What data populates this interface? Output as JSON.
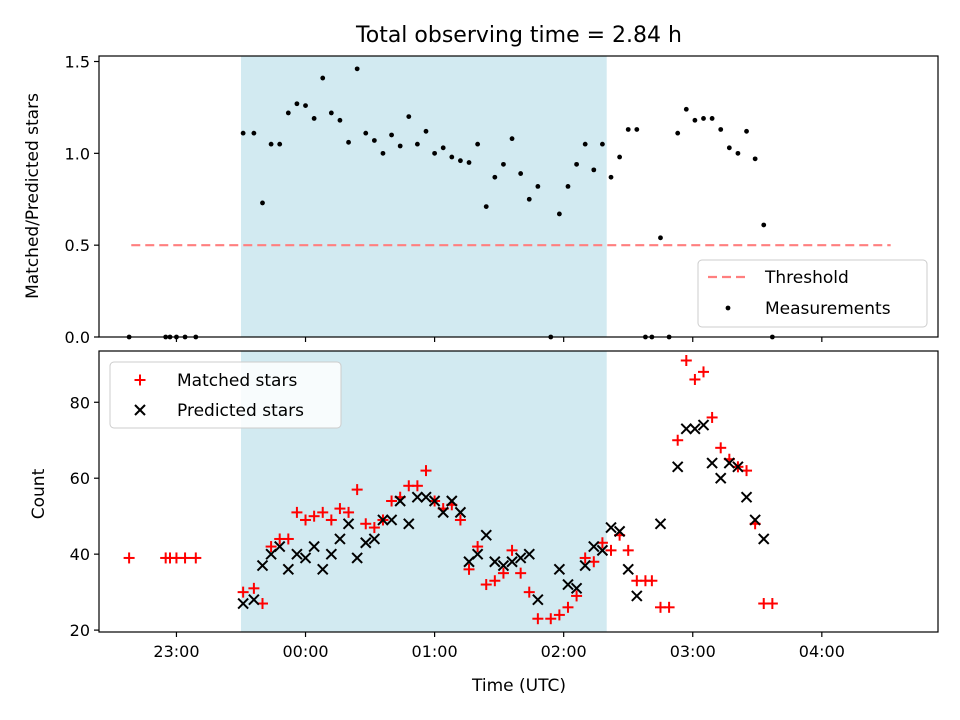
{
  "figure": {
    "title": "Total observing time = 2.84 h"
  },
  "colors": {
    "shade": "#add8e6",
    "threshold": "#ff7f7f",
    "measurement": "#000000",
    "matched": "#ff0000",
    "predicted": "#000000"
  },
  "chart_data": [
    {
      "type": "scatter",
      "panel": "top",
      "ylabel": "Matched/Predicted stars",
      "xlabel": "",
      "xlim": [
        "22:24",
        "04:54"
      ],
      "ylim": [
        0,
        1.53
      ],
      "yticks": [
        0.0,
        0.5,
        1.0,
        1.5
      ],
      "ytick_labels": [
        "0.0",
        "0.5",
        "1.0",
        "1.5"
      ],
      "xticks": [
        "23:00",
        "00:00",
        "01:00",
        "02:00",
        "03:00",
        "04:00"
      ],
      "shaded_span": {
        "x": [
          "23:30",
          "02:20"
        ]
      },
      "legend": {
        "position": "lower right",
        "entries": [
          "Threshold",
          "Measurements"
        ]
      },
      "threshold": {
        "name": "Threshold",
        "y": 0.5,
        "x": [
          "22:39",
          "04:32"
        ]
      },
      "series": [
        {
          "name": "Measurements",
          "marker": "point",
          "points": [
            [
              "22:38",
              0.0
            ],
            [
              "22:55",
              0.0
            ],
            [
              "22:57",
              0.0
            ],
            [
              "23:00",
              0.0
            ],
            [
              "23:04",
              0.0
            ],
            [
              "23:09",
              0.0
            ],
            [
              "23:31",
              1.11
            ],
            [
              "23:36",
              1.11
            ],
            [
              "23:40",
              0.73
            ],
            [
              "23:44",
              1.05
            ],
            [
              "23:48",
              1.05
            ],
            [
              "23:52",
              1.22
            ],
            [
              "23:56",
              1.27
            ],
            [
              "24:00",
              1.26
            ],
            [
              "24:04",
              1.19
            ],
            [
              "24:08",
              1.41
            ],
            [
              "24:12",
              1.22
            ],
            [
              "24:16",
              1.18
            ],
            [
              "24:20",
              1.06
            ],
            [
              "24:24",
              1.46
            ],
            [
              "24:28",
              1.11
            ],
            [
              "24:32",
              1.07
            ],
            [
              "24:36",
              1.0
            ],
            [
              "24:40",
              1.1
            ],
            [
              "24:44",
              1.04
            ],
            [
              "24:48",
              1.2
            ],
            [
              "24:52",
              1.05
            ],
            [
              "24:56",
              1.12
            ],
            [
              "25:00",
              1.0
            ],
            [
              "25:04",
              1.03
            ],
            [
              "25:08",
              0.98
            ],
            [
              "25:12",
              0.96
            ],
            [
              "25:16",
              0.95
            ],
            [
              "25:20",
              1.05
            ],
            [
              "25:24",
              0.71
            ],
            [
              "25:28",
              0.87
            ],
            [
              "25:32",
              0.94
            ],
            [
              "25:36",
              1.08
            ],
            [
              "25:40",
              0.89
            ],
            [
              "25:44",
              0.75
            ],
            [
              "25:48",
              0.82
            ],
            [
              "25:54",
              0.0
            ],
            [
              "25:58",
              0.67
            ],
            [
              "26:02",
              0.82
            ],
            [
              "26:06",
              0.94
            ],
            [
              "26:10",
              1.05
            ],
            [
              "26:14",
              0.91
            ],
            [
              "26:18",
              1.05
            ],
            [
              "26:22",
              0.87
            ],
            [
              "26:26",
              0.98
            ],
            [
              "26:30",
              1.13
            ],
            [
              "26:34",
              1.13
            ],
            [
              "26:38",
              0.0
            ],
            [
              "26:41",
              0.0
            ],
            [
              "26:45",
              0.54
            ],
            [
              "26:49",
              0.0
            ],
            [
              "26:53",
              1.11
            ],
            [
              "26:57",
              1.24
            ],
            [
              "27:01",
              1.18
            ],
            [
              "27:05",
              1.19
            ],
            [
              "27:09",
              1.19
            ],
            [
              "27:13",
              1.13
            ],
            [
              "27:17",
              1.03
            ],
            [
              "27:21",
              1.0
            ],
            [
              "27:25",
              1.12
            ],
            [
              "27:29",
              0.97
            ],
            [
              "27:33",
              0.61
            ],
            [
              "27:37",
              0.0
            ]
          ]
        }
      ]
    },
    {
      "type": "scatter",
      "panel": "bottom",
      "ylabel": "Count",
      "xlabel": "Time (UTC)",
      "xlim": [
        "22:24",
        "04:54"
      ],
      "ylim": [
        19.5,
        93.5
      ],
      "yticks": [
        20,
        40,
        60,
        80
      ],
      "ytick_labels": [
        "20",
        "40",
        "60",
        "80"
      ],
      "xticks": [
        "23:00",
        "00:00",
        "01:00",
        "02:00",
        "03:00",
        "04:00"
      ],
      "shaded_span": {
        "x": [
          "23:30",
          "02:20"
        ]
      },
      "legend": {
        "position": "upper left",
        "entries": [
          "Matched stars",
          "Predicted stars"
        ]
      },
      "series": [
        {
          "name": "Matched stars",
          "marker": "plus",
          "points": [
            [
              "22:38",
              39
            ],
            [
              "22:55",
              39
            ],
            [
              "22:57",
              39
            ],
            [
              "23:00",
              39
            ],
            [
              "23:04",
              39
            ],
            [
              "23:09",
              39
            ],
            [
              "23:31",
              30
            ],
            [
              "23:36",
              31
            ],
            [
              "23:40",
              27
            ],
            [
              "23:44",
              42
            ],
            [
              "23:48",
              44
            ],
            [
              "23:52",
              44
            ],
            [
              "23:56",
              51
            ],
            [
              "24:00",
              49
            ],
            [
              "24:04",
              50
            ],
            [
              "24:08",
              51
            ],
            [
              "24:12",
              49
            ],
            [
              "24:16",
              52
            ],
            [
              "24:20",
              51
            ],
            [
              "24:24",
              57
            ],
            [
              "24:28",
              48
            ],
            [
              "24:32",
              47
            ],
            [
              "24:36",
              49
            ],
            [
              "24:40",
              54
            ],
            [
              "24:44",
              55
            ],
            [
              "24:48",
              58
            ],
            [
              "24:52",
              58
            ],
            [
              "24:56",
              62
            ],
            [
              "25:00",
              54
            ],
            [
              "25:04",
              52
            ],
            [
              "25:08",
              53
            ],
            [
              "25:12",
              49
            ],
            [
              "25:16",
              36
            ],
            [
              "25:20",
              42
            ],
            [
              "25:24",
              32
            ],
            [
              "25:28",
              33
            ],
            [
              "25:32",
              35
            ],
            [
              "25:36",
              41
            ],
            [
              "25:40",
              35
            ],
            [
              "25:44",
              30
            ],
            [
              "25:48",
              23
            ],
            [
              "25:54",
              23
            ],
            [
              "25:58",
              24
            ],
            [
              "26:02",
              26
            ],
            [
              "26:06",
              29
            ],
            [
              "26:10",
              39
            ],
            [
              "26:14",
              38
            ],
            [
              "26:18",
              43
            ],
            [
              "26:22",
              41
            ],
            [
              "26:26",
              45
            ],
            [
              "26:30",
              41
            ],
            [
              "26:34",
              33
            ],
            [
              "26:38",
              33
            ],
            [
              "26:41",
              33
            ],
            [
              "26:45",
              26
            ],
            [
              "26:49",
              26
            ],
            [
              "26:53",
              70
            ],
            [
              "26:57",
              91
            ],
            [
              "27:01",
              86
            ],
            [
              "27:05",
              88
            ],
            [
              "27:09",
              76
            ],
            [
              "27:13",
              68
            ],
            [
              "27:17",
              65
            ],
            [
              "27:21",
              63
            ],
            [
              "27:25",
              62
            ],
            [
              "27:29",
              48
            ],
            [
              "27:33",
              27
            ],
            [
              "27:37",
              27
            ]
          ]
        },
        {
          "name": "Predicted stars",
          "marker": "x",
          "points": [
            [
              "23:31",
              27
            ],
            [
              "23:36",
              28
            ],
            [
              "23:40",
              37
            ],
            [
              "23:44",
              40
            ],
            [
              "23:48",
              42
            ],
            [
              "23:52",
              36
            ],
            [
              "23:56",
              40
            ],
            [
              "24:00",
              39
            ],
            [
              "24:04",
              42
            ],
            [
              "24:08",
              36
            ],
            [
              "24:12",
              40
            ],
            [
              "24:16",
              44
            ],
            [
              "24:20",
              48
            ],
            [
              "24:24",
              39
            ],
            [
              "24:28",
              43
            ],
            [
              "24:32",
              44
            ],
            [
              "24:36",
              49
            ],
            [
              "24:40",
              49
            ],
            [
              "24:44",
              54
            ],
            [
              "24:48",
              48
            ],
            [
              "24:52",
              55
            ],
            [
              "24:56",
              55
            ],
            [
              "25:00",
              54
            ],
            [
              "25:04",
              51
            ],
            [
              "25:08",
              54
            ],
            [
              "25:12",
              51
            ],
            [
              "25:16",
              38
            ],
            [
              "25:20",
              40
            ],
            [
              "25:24",
              45
            ],
            [
              "25:28",
              38
            ],
            [
              "25:32",
              37
            ],
            [
              "25:36",
              38
            ],
            [
              "25:40",
              39
            ],
            [
              "25:44",
              40
            ],
            [
              "25:48",
              28
            ],
            [
              "25:58",
              36
            ],
            [
              "26:02",
              32
            ],
            [
              "26:06",
              31
            ],
            [
              "26:10",
              37
            ],
            [
              "26:14",
              42
            ],
            [
              "26:18",
              41
            ],
            [
              "26:22",
              47
            ],
            [
              "26:26",
              46
            ],
            [
              "26:30",
              36
            ],
            [
              "26:34",
              29
            ],
            [
              "26:45",
              48
            ],
            [
              "26:53",
              63
            ],
            [
              "26:57",
              73
            ],
            [
              "27:01",
              73
            ],
            [
              "27:05",
              74
            ],
            [
              "27:09",
              64
            ],
            [
              "27:13",
              60
            ],
            [
              "27:17",
              64
            ],
            [
              "27:21",
              63
            ],
            [
              "27:25",
              55
            ],
            [
              "27:29",
              49
            ],
            [
              "27:33",
              44
            ]
          ]
        }
      ]
    }
  ]
}
